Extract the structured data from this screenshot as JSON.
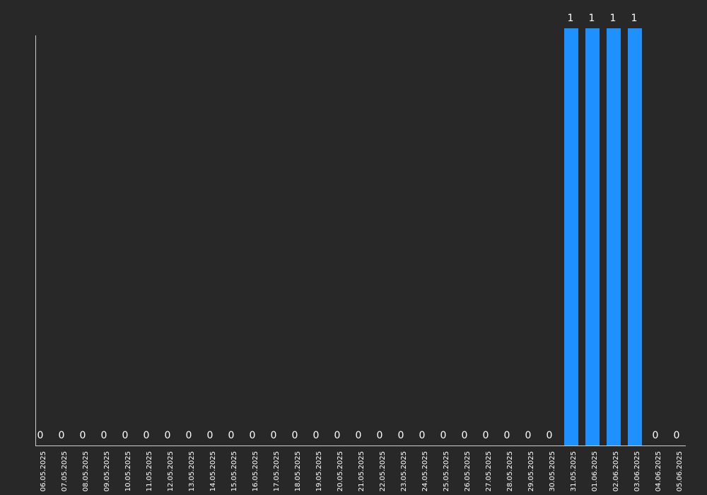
{
  "chart_data": {
    "type": "bar",
    "categories": [
      "06.05.2025",
      "07.05.2025",
      "08.05.2025",
      "09.05.2025",
      "10.05.2025",
      "11.05.2025",
      "12.05.2025",
      "13.05.2025",
      "14.05.2025",
      "15.05.2025",
      "16.05.2025",
      "17.05.2025",
      "18.05.2025",
      "19.05.2025",
      "20.05.2025",
      "21.05.2025",
      "22.05.2025",
      "23.05.2025",
      "24.05.2025",
      "25.05.2025",
      "26.05.2025",
      "27.05.2025",
      "28.05.2025",
      "29.05.2025",
      "30.05.2025",
      "31.05.2025",
      "01.06.2025",
      "02.06.2025",
      "03.06.2025",
      "04.06.2025",
      "05.06.2025"
    ],
    "values": [
      0,
      0,
      0,
      0,
      0,
      0,
      0,
      0,
      0,
      0,
      0,
      0,
      0,
      0,
      0,
      0,
      0,
      0,
      0,
      0,
      0,
      0,
      0,
      0,
      0,
      1,
      1,
      1,
      1,
      0,
      0
    ],
    "color": "#1e90ff",
    "ylim": [
      0,
      1
    ]
  }
}
